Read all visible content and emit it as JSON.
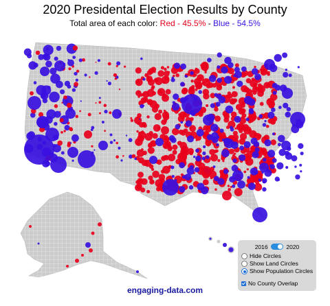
{
  "title": "2020 Presidental Election Results by County",
  "subtitle": {
    "prefix": "Total area of each color: ",
    "red": "Red - 45.5%",
    "sep": " - ",
    "blue": "Blue - 54.5%"
  },
  "colors": {
    "red": "#e8001c",
    "blue": "#3a10e0",
    "land": "#cccccc",
    "border": "#ffffff"
  },
  "controls": {
    "year_left": "2016",
    "year_right": "2020",
    "selected_year": "2020",
    "options": [
      "Hide Circles",
      "Show Land Circles",
      "Show Population Circles"
    ],
    "selected_option": "Show Population Circles",
    "checkbox_label": "No County Overlap",
    "checkbox_checked": true
  },
  "footer": "engaging-data.com"
}
